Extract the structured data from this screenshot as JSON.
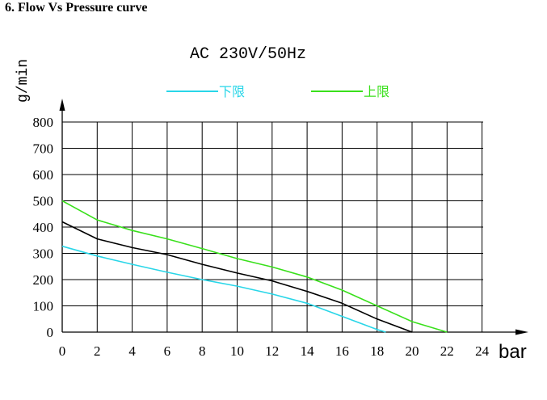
{
  "heading": "6. Flow Vs Pressure curve",
  "chart_data": {
    "type": "line",
    "title": "AC 230V/50Hz",
    "xlabel": "bar",
    "ylabel": "g/min",
    "xlim": [
      0,
      24
    ],
    "ylim": [
      0,
      800
    ],
    "xticks": [
      0,
      2,
      4,
      6,
      8,
      10,
      12,
      14,
      16,
      18,
      20,
      22,
      24
    ],
    "yticks": [
      0,
      100,
      200,
      300,
      400,
      500,
      600,
      700,
      800
    ],
    "grid": true,
    "legend": "top",
    "series": [
      {
        "name": "下限",
        "color": "#29d6e8",
        "x": [
          0,
          2,
          4,
          6,
          8,
          10,
          12,
          14,
          16,
          18,
          18.5
        ],
        "y": [
          327,
          290,
          258,
          228,
          200,
          175,
          145,
          110,
          60,
          10,
          0
        ]
      },
      {
        "name": "上限",
        "color": "#39e01b",
        "x": [
          0,
          2,
          4,
          6,
          8,
          10,
          12,
          14,
          16,
          18,
          20,
          22
        ],
        "y": [
          500,
          427,
          387,
          355,
          318,
          280,
          248,
          210,
          160,
          100,
          40,
          0
        ]
      },
      {
        "name": "",
        "color": "#000000",
        "x": [
          0,
          2,
          4,
          6,
          8,
          10,
          12,
          14,
          16,
          18,
          20
        ],
        "y": [
          420,
          355,
          322,
          295,
          258,
          225,
          195,
          155,
          110,
          50,
          0
        ]
      }
    ]
  }
}
